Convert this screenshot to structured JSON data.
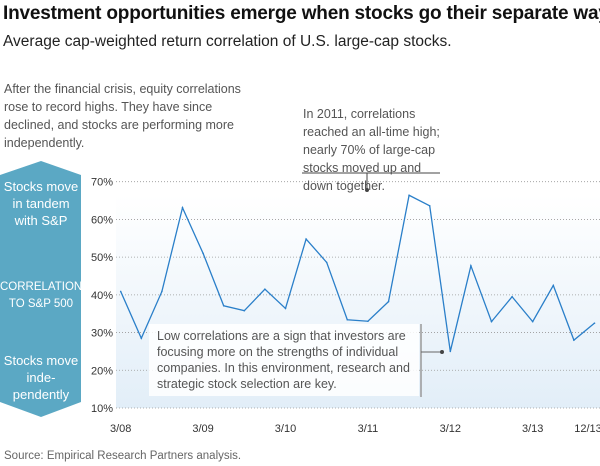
{
  "title": "Investment opportunities emerge when stocks go their separate ways",
  "subtitle": "Average cap-weighted return correlation of U.S. large-cap stocks.",
  "intro": "After the financial crisis, equity correlations rose to record highs. They have since declined, and stocks are performing more independently.",
  "annotation_high": "In 2011, correlations reached an all-time high; nearly 70% of large-cap stocks moved up and down together.",
  "annotation_low": "Low correlations are a sign that investors are focusing more on the strengths of individual companies. In this environment, research and strategic stock selection are key.",
  "side_panel": {
    "top": "Stocks move in tandem with S&P",
    "middle": "CORRELATION TO S&P 500",
    "bottom": "Stocks move inde-pendently",
    "color": "#5ba8c4"
  },
  "source": "Source: Empirical Research Partners analysis.",
  "chart_data": {
    "type": "line",
    "ylim": [
      10,
      70
    ],
    "yticks": [
      "10%",
      "20%",
      "30%",
      "40%",
      "50%",
      "60%",
      "70%"
    ],
    "xtick_labels": [
      {
        "index": 0,
        "label": "3/08"
      },
      {
        "index": 4,
        "label": "3/09"
      },
      {
        "index": 8,
        "label": "3/10"
      },
      {
        "index": 12,
        "label": "3/11"
      },
      {
        "index": 16,
        "label": "3/12"
      },
      {
        "index": 20,
        "label": "3/13"
      },
      {
        "index": 23,
        "label": "12/13"
      }
    ],
    "values": [
      40.9,
      28.5,
      40.9,
      63.1,
      51.0,
      37.1,
      35.8,
      41.5,
      36.4,
      54.8,
      48.6,
      33.4,
      33.0,
      38.2,
      66.4,
      63.6,
      25.0,
      47.7,
      32.9,
      39.5,
      32.9,
      42.5,
      28.0,
      32.5
    ],
    "line_color": "#2a7fc9",
    "grid": true
  }
}
